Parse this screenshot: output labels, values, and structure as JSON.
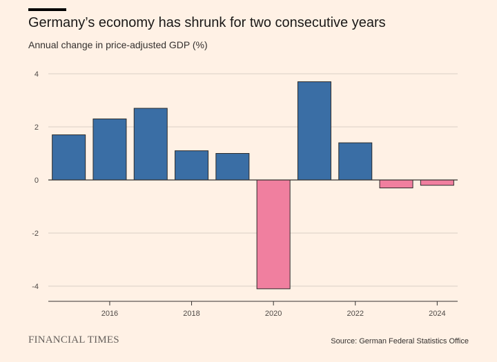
{
  "header": {
    "title": "Germany’s economy has shrunk for two consecutive years",
    "subtitle": "Annual change in price-adjusted GDP (%)"
  },
  "footer": {
    "brand": "FINANCIAL TIMES",
    "source": "Source: German Federal Statistics Office"
  },
  "colors": {
    "positive": "#3a6ea5",
    "negative": "#f07f9f",
    "gridline": "#d9cfc5",
    "axis": "#33302e"
  },
  "chart_data": {
    "type": "bar",
    "title": "Germany’s economy has shrunk for two consecutive years",
    "ylabel": "Annual change in price-adjusted GDP (%)",
    "xlabel": "",
    "categories": [
      2015,
      2016,
      2017,
      2018,
      2019,
      2020,
      2021,
      2022,
      2023,
      2024
    ],
    "values": [
      1.7,
      2.3,
      2.7,
      1.1,
      1.0,
      -4.1,
      3.7,
      1.4,
      -0.3,
      -0.2
    ],
    "ylim": [
      -4.6,
      4.3
    ],
    "yticks": [
      4,
      2,
      0,
      -2,
      -4
    ],
    "ytick_labels": [
      "4",
      "2",
      "0",
      "-2",
      "-4"
    ],
    "xticks": [
      2016,
      2018,
      2020,
      2022,
      2024
    ],
    "xtick_labels": [
      "2016",
      "2018",
      "2020",
      "2022",
      "2024"
    ],
    "grid": true
  }
}
